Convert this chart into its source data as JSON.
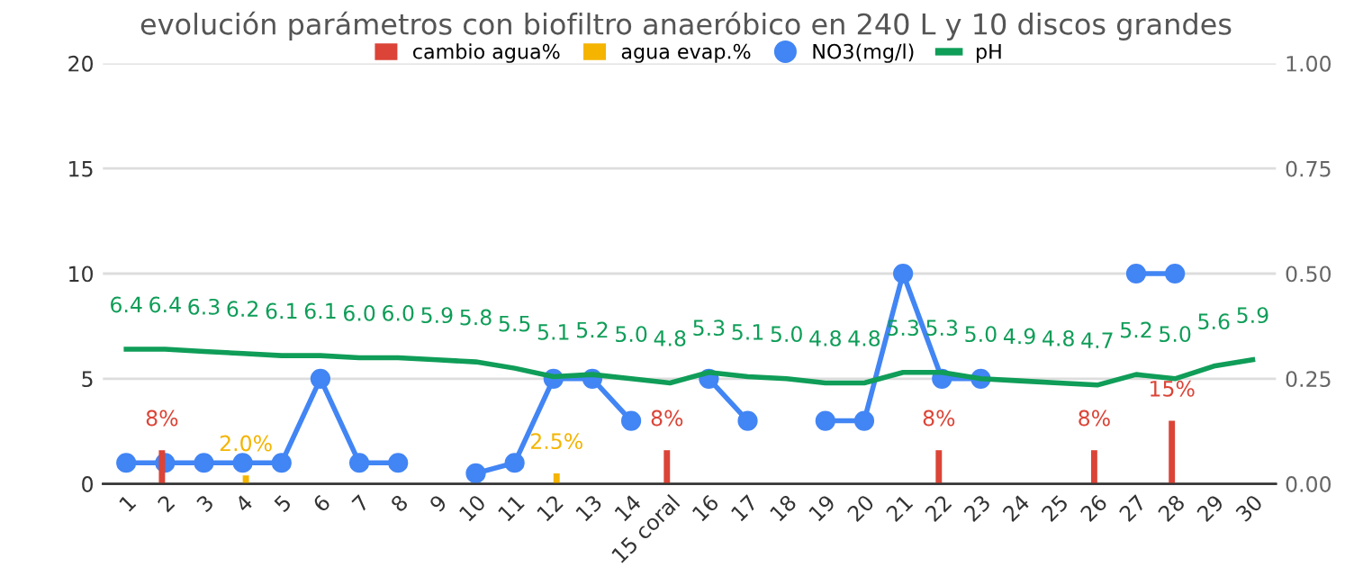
{
  "chart_data": {
    "type": "bar",
    "title": "evolución parámetros con biofiltro anaeróbico en 240 L y 10 discos grandes",
    "categories": [
      "1",
      "2",
      "3",
      "4",
      "5",
      "6",
      "7",
      "8",
      "9",
      "10",
      "11",
      "12",
      "13",
      "14",
      "15 coral",
      "16",
      "17",
      "18",
      "19",
      "20",
      "21",
      "22",
      "23",
      "24",
      "25",
      "26",
      "27",
      "28",
      "29",
      "30"
    ],
    "series": [
      {
        "name": "cambio agua%",
        "axis": "y2",
        "color": "#db4437",
        "values": [
          null,
          0.08,
          null,
          null,
          null,
          null,
          null,
          null,
          null,
          null,
          null,
          null,
          null,
          null,
          0.08,
          null,
          null,
          null,
          null,
          null,
          null,
          0.08,
          null,
          null,
          null,
          0.08,
          null,
          0.15,
          null,
          null
        ],
        "value_labels": [
          null,
          "8%",
          null,
          null,
          null,
          null,
          null,
          null,
          null,
          null,
          null,
          null,
          null,
          null,
          "8%",
          null,
          null,
          null,
          null,
          null,
          null,
          "8%",
          null,
          null,
          null,
          "8%",
          null,
          "15%",
          null,
          null
        ]
      },
      {
        "name": "agua evap.%",
        "axis": "y2",
        "color": "#f4b400",
        "values": [
          null,
          null,
          null,
          0.02,
          null,
          null,
          null,
          null,
          null,
          null,
          null,
          0.025,
          null,
          null,
          null,
          null,
          null,
          null,
          null,
          null,
          null,
          null,
          null,
          null,
          null,
          null,
          null,
          null,
          null,
          null
        ],
        "value_labels": [
          null,
          null,
          null,
          "2.0%",
          null,
          null,
          null,
          null,
          null,
          null,
          null,
          "2.5%",
          null,
          null,
          null,
          null,
          null,
          null,
          null,
          null,
          null,
          null,
          null,
          null,
          null,
          null,
          null,
          null,
          null,
          null
        ]
      },
      {
        "name": "NO3(mg/l)",
        "type": "line",
        "marker": "circle",
        "color": "#4285f4",
        "values": [
          1,
          1,
          1,
          1,
          1,
          5,
          1,
          1,
          null,
          0.5,
          1,
          5,
          5,
          3,
          null,
          5,
          3,
          null,
          3,
          3,
          10,
          5,
          5,
          null,
          null,
          null,
          10,
          10,
          null,
          null
        ]
      },
      {
        "name": "pH",
        "type": "line",
        "marker": "none",
        "color": "#0f9d58",
        "values": [
          6.4,
          6.4,
          6.3,
          6.2,
          6.1,
          6.1,
          6.0,
          6.0,
          5.9,
          5.8,
          5.5,
          5.1,
          5.2,
          5.0,
          4.8,
          5.3,
          5.1,
          5.0,
          4.8,
          4.8,
          5.3,
          5.3,
          5.0,
          4.9,
          4.8,
          4.7,
          5.2,
          5.0,
          5.6,
          5.9
        ],
        "value_labels": [
          "6.4",
          "6.4",
          "6.3",
          "6.2",
          "6.1",
          "6.1",
          "6.0",
          "6.0",
          "5.9",
          "5.8",
          "5.5",
          "5.1",
          "5.2",
          "5.0",
          "4.8",
          "5.3",
          "5.1",
          "5.0",
          "4.8",
          "4.8",
          "5.3",
          "5.3",
          "5.0",
          "4.9",
          "4.8",
          "4.7",
          "5.2",
          "5.0",
          "5.6",
          "5.9"
        ]
      }
    ],
    "ylim": [
      0,
      20
    ],
    "yticks": [
      0,
      5,
      10,
      15,
      20
    ],
    "y2lim": [
      0,
      1
    ],
    "y2ticks": [
      {
        "value": 0,
        "label": "0.00"
      },
      {
        "value": 0.25,
        "label": "0.25"
      },
      {
        "value": 0.5,
        "label": "0.50"
      },
      {
        "value": 0.75,
        "label": "0.75"
      },
      {
        "value": 1,
        "label": "1.00"
      }
    ],
    "grid": "y",
    "legend": "top"
  }
}
